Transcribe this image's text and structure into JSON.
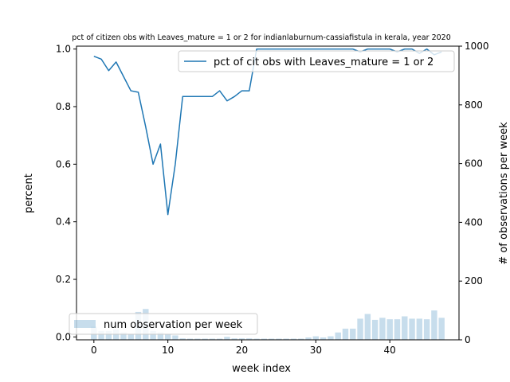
{
  "chart_data": {
    "type": "line",
    "title": "pct of citizen obs with Leaves_mature = 1 or 2 for indianlaburnum-cassiafistula in kerala, year 2020",
    "xlabel": "week index",
    "ylabel": "percent",
    "ylabel_right": "# of observations per week",
    "xlim": [
      -2.35,
      49.35
    ],
    "ylim": [
      -0.01,
      1.01
    ],
    "ylim_right": [
      0,
      1000
    ],
    "x_ticks": [
      0,
      10,
      20,
      30,
      40
    ],
    "y_ticks": [
      0.0,
      0.2,
      0.4,
      0.6,
      0.8,
      1.0
    ],
    "y_ticks_right": [
      0,
      200,
      400,
      600,
      800,
      1000
    ],
    "grid": false,
    "line_series": {
      "name": "pct of cit obs with Leaves_mature = 1 or 2",
      "color": "#1f77b4",
      "x": [
        0,
        1,
        2,
        3,
        4,
        5,
        6,
        7,
        8,
        9,
        10,
        11,
        12,
        13,
        14,
        15,
        16,
        17,
        18,
        19,
        20,
        21,
        22,
        23,
        24,
        25,
        26,
        27,
        28,
        29,
        30,
        31,
        32,
        33,
        34,
        35,
        36,
        37,
        38,
        39,
        40,
        41,
        42,
        43,
        44,
        45,
        46,
        47
      ],
      "values": [
        0.975,
        0.965,
        0.925,
        0.955,
        0.905,
        0.855,
        0.85,
        0.73,
        0.6,
        0.67,
        0.425,
        0.6,
        0.835,
        0.835,
        0.835,
        0.835,
        0.835,
        0.855,
        0.82,
        0.835,
        0.855,
        0.855,
        1.0,
        1.0,
        1.0,
        1.0,
        1.0,
        1.0,
        1.0,
        1.0,
        1.0,
        1.0,
        1.0,
        1.0,
        1.0,
        1.0,
        0.99,
        1.0,
        1.0,
        1.0,
        1.0,
        0.99,
        1.0,
        1.0,
        0.985,
        1.0,
        0.98,
        0.99
      ]
    },
    "bar_series": {
      "name": "num observation per week",
      "color": "#1f77b4",
      "alpha": 0.25,
      "x": [
        0,
        1,
        2,
        3,
        4,
        5,
        6,
        7,
        8,
        9,
        10,
        11,
        12,
        13,
        14,
        15,
        16,
        17,
        18,
        19,
        20,
        21,
        22,
        23,
        24,
        25,
        26,
        27,
        28,
        29,
        30,
        31,
        32,
        33,
        34,
        35,
        36,
        37,
        38,
        39,
        40,
        41,
        42,
        43,
        44,
        45,
        46,
        47
      ],
      "values": [
        45,
        30,
        30,
        35,
        25,
        20,
        95,
        105,
        30,
        25,
        20,
        15,
        5,
        4,
        4,
        4,
        4,
        4,
        10,
        5,
        5,
        5,
        4,
        4,
        4,
        4,
        4,
        4,
        4,
        8,
        12,
        8,
        12,
        25,
        38,
        38,
        72,
        88,
        68,
        75,
        70,
        70,
        80,
        72,
        72,
        70,
        100,
        75
      ]
    },
    "legends": [
      {
        "label": "pct of cit obs with Leaves_mature = 1 or 2",
        "placement": "top-right"
      },
      {
        "label": "num observation per week",
        "placement": "bottom-left"
      }
    ]
  }
}
